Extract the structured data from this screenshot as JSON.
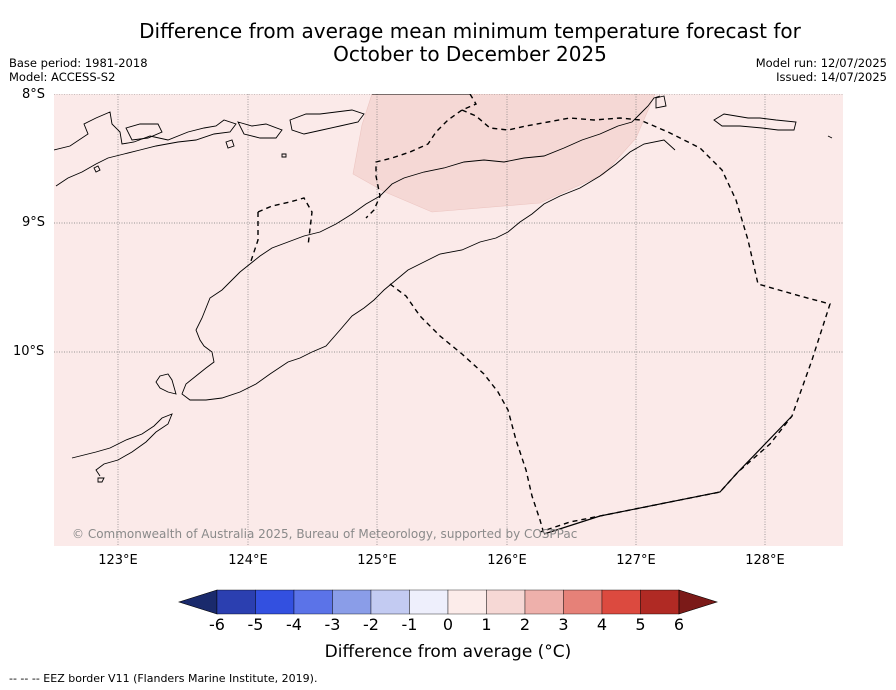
{
  "title_line1": "Difference from average mean minimum temperature forecast for",
  "title_line2": "October to December 2025",
  "meta_left": {
    "base_period": "Base period: 1981-2018",
    "model": "Model: ACCESS-S2"
  },
  "meta_right": {
    "model_run": "Model run: 12/07/2025",
    "issued": "Issued: 14/07/2025"
  },
  "latitudes": [
    "8°S",
    "9°S",
    "10°S"
  ],
  "longitudes": [
    "123°E",
    "124°E",
    "125°E",
    "126°E",
    "127°E",
    "128°E"
  ],
  "copyright": "© Commonwealth of Australia 2025, Bureau of Meteorology, supported by COSPPac",
  "colorbar": {
    "ticks": [
      "-6",
      "-5",
      "-4",
      "-3",
      "-2",
      "-1",
      "0",
      "1",
      "2",
      "3",
      "4",
      "5",
      "6"
    ],
    "colors": [
      "#1a2a6c",
      "#2b3fb0",
      "#3350e0",
      "#5b73e8",
      "#8a9de8",
      "#c3cbf2",
      "#eeeffc",
      "#fcecea",
      "#f6d8d5",
      "#eeb0ab",
      "#e68178",
      "#dc4a3f",
      "#b02a24",
      "#7b1a18"
    ],
    "label": "Difference from average (°C)"
  },
  "map": {
    "background_category": "0 to 1",
    "background_color": "#fbeae9",
    "patch_category": "1 to 2",
    "patch_color": "#f5d8d5"
  },
  "footnote": "-- -- -- EEZ border V11 (Flanders Marine Institute, 2019)."
}
